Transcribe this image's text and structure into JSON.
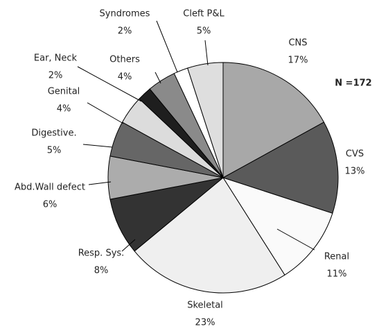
{
  "chart_data": {
    "type": "pie",
    "annotation": "N =172",
    "categories": [
      "CNS",
      "CVS",
      "Renal",
      "Skeletal",
      "Resp. Sys.",
      "Abd.Wall defect",
      "Digestive.",
      "Genital",
      "Ear, Neck",
      "Others",
      "Syndromes",
      "Cleft P&L"
    ],
    "values": [
      17,
      13,
      11,
      23,
      8,
      6,
      5,
      4,
      2,
      4,
      2,
      5
    ],
    "value_labels": [
      "17%",
      "13%",
      "11%",
      "23%",
      "8%",
      "6%",
      "5%",
      "4%",
      "2%",
      "4%",
      "2%",
      "5%"
    ],
    "colors": [
      "#a8a8a8",
      "#5a5a5a",
      "#fafafa",
      "#efefef",
      "#333333",
      "#acacac",
      "#666666",
      "#dcdcdc",
      "#1e1e1e",
      "#8a8a8a",
      "#ffffff",
      "#dedede"
    ]
  }
}
